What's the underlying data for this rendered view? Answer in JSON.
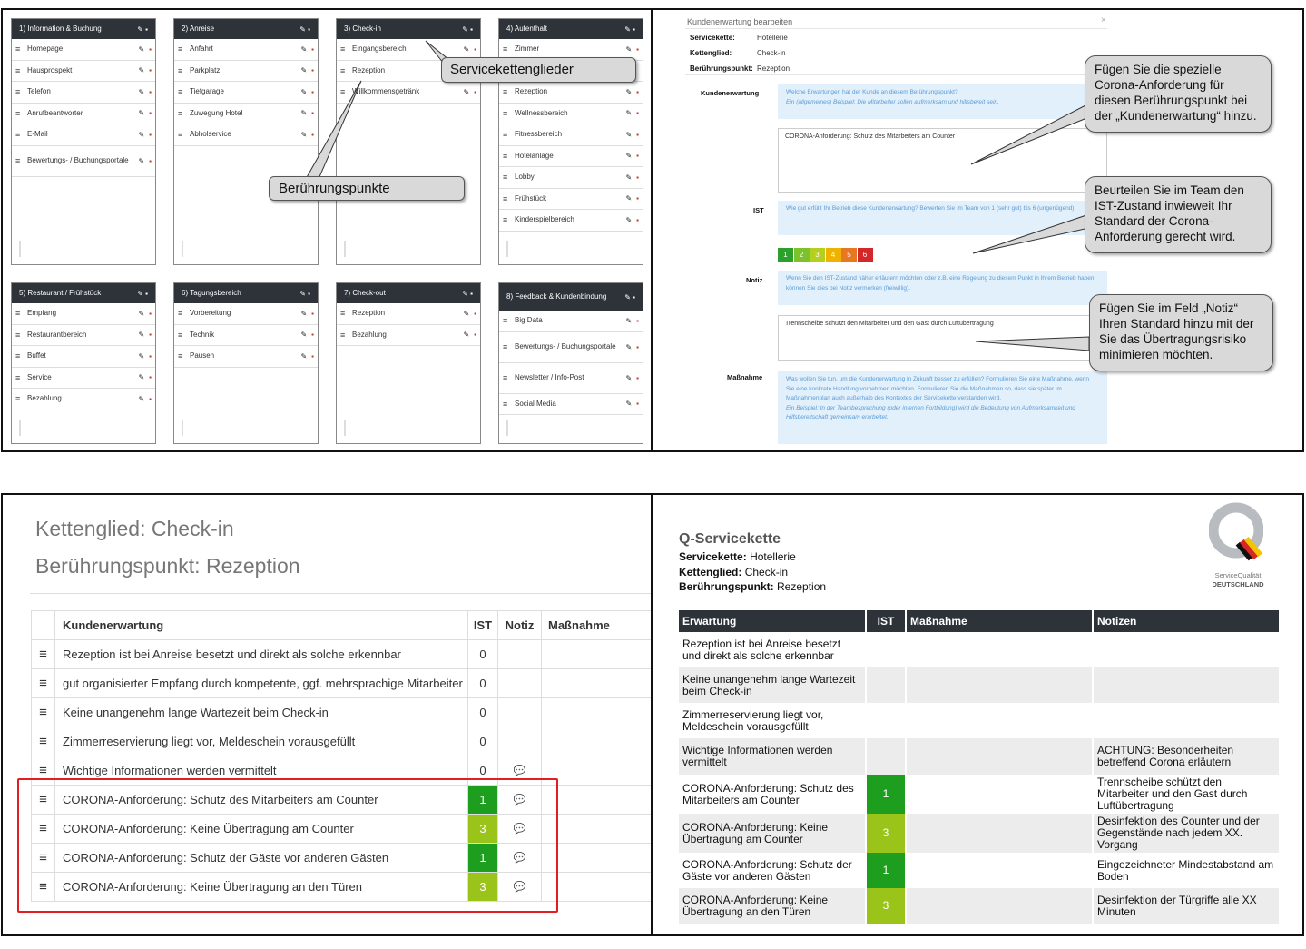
{
  "panel1": {
    "columns": [
      {
        "title": "1) Information & Buchung",
        "items": [
          "Homepage",
          "Hausprospekt",
          "Telefon",
          "Anrufbeantworter",
          "E-Mail",
          "Bewertungs- / Buchungsportale"
        ]
      },
      {
        "title": "2) Anreise",
        "items": [
          "Anfahrt",
          "Parkplatz",
          "Tiefgarage",
          "Zuwegung Hotel",
          "Abholservice"
        ]
      },
      {
        "title": "3) Check-in",
        "items": [
          "Eingangsbereich",
          "Rezeption",
          "Willkommensgetränk"
        ]
      },
      {
        "title": "4) Aufenthalt",
        "items": [
          "Zimmer",
          "",
          "Rezeption",
          "Wellnessbereich",
          "Fitnessbereich",
          "Hotelanlage",
          "Lobby",
          "Frühstück",
          "Kinderspielbereich"
        ]
      },
      {
        "title": "5) Restaurant / Frühstück",
        "items": [
          "Empfang",
          "Restaurantbereich",
          "Buffet",
          "Service",
          "Bezahlung"
        ]
      },
      {
        "title": "6) Tagungsbereich",
        "items": [
          "Vorbereitung",
          "Technik",
          "Pausen"
        ]
      },
      {
        "title": "7) Check-out",
        "items": [
          "Rezeption",
          "Bezahlung"
        ]
      },
      {
        "title": "8) Feedback & Kundenbindung",
        "items": [
          "Big Data",
          "Bewertungs- / Buchungsportale",
          "Newsletter / Info-Post",
          "Social Media"
        ]
      }
    ],
    "callouts": {
      "servicekette": "Servicekettenglieder",
      "beruehrung": "Berührungspunkte"
    }
  },
  "panel2": {
    "title": "Kundenerwartung bearbeiten",
    "close": "×",
    "fields": [
      {
        "label": "Servicekette:",
        "value": "Hotellerie"
      },
      {
        "label": "Kettenglied:",
        "value": "Check-in"
      },
      {
        "label": "Berührungspunkt:",
        "value": "Rezeption"
      }
    ],
    "kundenerwartung_label": "Kundenerwartung",
    "kundenerwartung_info1": "Welche Erwartungen hat der Kunde an diesem Berührungspunkt?",
    "kundenerwartung_info2": "Ein (allgemeines) Beispiel: Die Mitarbeiter sollen aufmerksam und hilfsbereit sein.",
    "kundenerwartung_value": "CORONA-Anforderung: Schutz des Mitarbeiters am Counter",
    "ist_label": "IST",
    "ist_info": "Wie gut erfüllt Ihr Betrieb diese Kundenerwartung? Bewerten Sie im Team von 1 (sehr gut) bis 6 (ungenügend).",
    "scores": [
      "1",
      "2",
      "3",
      "4",
      "5",
      "6"
    ],
    "score_colors": [
      "#2ca02c",
      "#7cc22b",
      "#b5cf1f",
      "#f0b200",
      "#e87722",
      "#d62728"
    ],
    "notiz_label": "Notiz",
    "notiz_info": "Wenn Sie den IST-Zustand näher erläutern möchten oder z.B. eine Regelung zu diesem Punkt in Ihrem Betrieb haben, können Sie dies bei Notiz vermerken (freiwillig).",
    "notiz_value": "Trennscheibe schützt den Mitarbeiter und den Gast durch Luftübertragung",
    "massnahme_label": "Maßnahme",
    "massnahme_info": "Was wollen Sie tun, um die Kundenerwartung in Zukunft besser zu erfüllen? Formulieren Sie eine Maßnahme, wenn Sie eine konkrete Handlung vornehmen möchten. Formulieren Sie die Maßnahmen so, dass sie später im Maßnahmenplan auch außerhalb des Kontextes der Servicekette verstanden wird.",
    "massnahme_example": "Ein Beispiel: In der Teambesprechung (oder internen Fortbildung) wird die Bedeutung von Aufmerksamkeit und Hilfsbereitschaft gemeinsam erarbeitet.",
    "callouts": [
      "Fügen Sie die spezielle Corona-Anforderung für diesen Berührungspunkt bei der „Kundenerwartung“ hinzu.",
      "Beurteilen Sie im Team den IST-Zustand inwieweit Ihr Standard der Corona-Anforderung gerecht wird.",
      "Fügen Sie im Feld „Notiz“ Ihren Standard hinzu mit der Sie das Übertragungsrisiko minimieren möchten."
    ]
  },
  "panel3": {
    "title1": "Kettenglied: Check-in",
    "title2": "Berührungspunkt: Rezeption",
    "headers": [
      "Kundenerwartung",
      "IST",
      "Notiz",
      "Maßnahme"
    ],
    "rows": [
      {
        "text": "Rezeption ist bei Anreise besetzt und direkt als solche erkennbar",
        "ist": "0",
        "note": false
      },
      {
        "text": "gut organisierter Empfang durch kompetente, ggf. mehrsprachige Mitarbeiter",
        "ist": "0",
        "note": false
      },
      {
        "text": "Keine unangenehm lange Wartezeit beim Check-in",
        "ist": "0",
        "note": false
      },
      {
        "text": "Zimmerreservierung liegt vor, Meldeschein vorausgefüllt",
        "ist": "0",
        "note": false
      },
      {
        "text": "Wichtige Informationen werden vermittelt",
        "ist": "0",
        "note": true
      },
      {
        "text": "CORONA-Anforderung: Schutz des Mitarbeiters am Counter",
        "ist": "1",
        "note": true
      },
      {
        "text": "CORONA-Anforderung: Keine Übertragung am Counter",
        "ist": "3",
        "note": true
      },
      {
        "text": "CORONA-Anforderung: Schutz der Gäste vor anderen Gästen",
        "ist": "1",
        "note": true
      },
      {
        "text": "CORONA-Anforderung: Keine Übertragung an den Türen",
        "ist": "3",
        "note": true
      }
    ]
  },
  "panel4": {
    "title": "Q-Servicekette",
    "meta": [
      {
        "label": "Servicekette:",
        "value": "Hotellerie"
      },
      {
        "label": "Kettenglied:",
        "value": "Check-in"
      },
      {
        "label": "Berührungspunkt:",
        "value": "Rezeption"
      }
    ],
    "logo_line1": "ServiceQualität",
    "logo_line2": "DEUTSCHLAND",
    "logo_letter": "Q",
    "headers": [
      "Erwartung",
      "IST",
      "Maßnahme",
      "Notizen"
    ],
    "rows": [
      {
        "erw": "Rezeption ist bei Anreise besetzt und direkt als solche erkennbar",
        "ist": "",
        "mass": "",
        "note": ""
      },
      {
        "erw": "Keine unangenehm lange Wartezeit beim Check-in",
        "ist": "",
        "mass": "",
        "note": ""
      },
      {
        "erw": "Zimmerreservierung liegt vor, Meldeschein vorausgefüllt",
        "ist": "",
        "mass": "",
        "note": ""
      },
      {
        "erw": "Wichtige Informationen werden vermittelt",
        "ist": "",
        "mass": "",
        "note": "ACHTUNG: Besonderheiten betreffend Corona erläutern"
      },
      {
        "erw": "CORONA-Anforderung: Schutz des Mitarbeiters am Counter",
        "ist": "1",
        "mass": "",
        "note": "Trennscheibe schützt den Mitarbeiter und den Gast durch Luftübertragung"
      },
      {
        "erw": "CORONA-Anforderung: Keine Übertragung am Counter",
        "ist": "3",
        "mass": "",
        "note": "Desinfektion des Counter und der Gegenstände nach jedem XX. Vorgang"
      },
      {
        "erw": "CORONA-Anforderung: Schutz der Gäste vor anderen Gästen",
        "ist": "1",
        "mass": "",
        "note": "Eingezeichneter Mindestabstand am Boden"
      },
      {
        "erw": "CORONA-Anforderung: Keine Übertragung an den Türen",
        "ist": "3",
        "mass": "",
        "note": "Desinfektion der Türgriffe alle XX Minuten"
      }
    ]
  },
  "colors": {
    "dark": "#2e333a",
    "score1": "#1e9e1e",
    "score3": "#9bc41a",
    "highlight": "#e02020",
    "info": "#e2f0fb"
  }
}
